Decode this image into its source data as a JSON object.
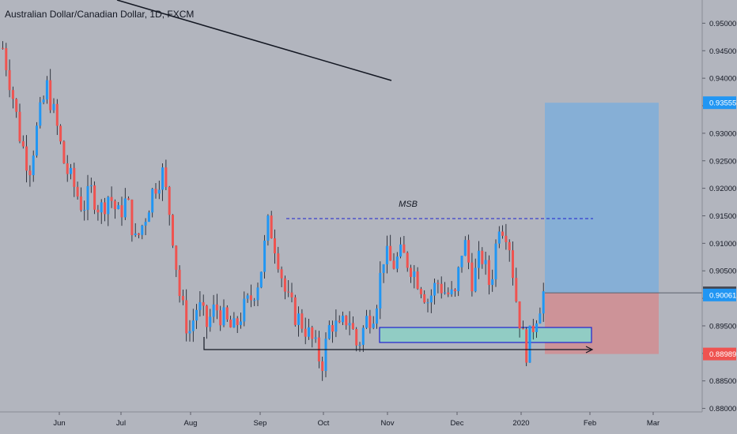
{
  "header": {
    "title": "Australian Dollar/Canadian Dollar, 1D, FXCM"
  },
  "chart_data": {
    "type": "candlestick",
    "symbol": "Australian Dollar/Canadian Dollar",
    "interval": "1D",
    "source": "FXCM",
    "ylim": [
      0.8775,
      0.9535
    ],
    "y_ticks": [
      "0.88000",
      "0.88500",
      "0.89000",
      "0.89500",
      "0.90000",
      "0.90500",
      "0.91000",
      "0.91500",
      "0.92000",
      "0.92500",
      "0.93000",
      "0.93500",
      "0.94000",
      "0.94500",
      "0.95000"
    ],
    "x_ticks": [
      "Jun",
      "Jul",
      "Aug",
      "Sep",
      "Oct",
      "Nov",
      "Dec",
      "2020",
      "Feb",
      "Mar"
    ],
    "price_badges": [
      {
        "label": "0.93555",
        "value": 0.93555,
        "color": "#2196f3"
      },
      {
        "label": "0.90100",
        "value": 0.901,
        "color": "#434651"
      },
      {
        "label": "0.90061",
        "value": 0.90061,
        "color": "#2196f3"
      },
      {
        "label": "0.88989",
        "value": 0.88989,
        "color": "#ef5350"
      }
    ],
    "annotations": {
      "msb_label": "MSB",
      "msb_level": 0.9145
    },
    "colors": {
      "up": "#2196f3",
      "down": "#ef5350",
      "background": "#b2b5be"
    },
    "ohlc_waypoints": [
      {
        "close": 0.9455
      },
      {
        "close": 0.938
      },
      {
        "close": 0.929
      },
      {
        "close": 0.9235
      },
      {
        "close": 0.932
      },
      {
        "close": 0.9385
      },
      {
        "close": 0.932
      },
      {
        "close": 0.924
      },
      {
        "close": 0.9205
      },
      {
        "close": 0.9165
      },
      {
        "close": 0.9195
      },
      {
        "close": 0.916
      },
      {
        "close": 0.919
      },
      {
        "close": 0.915
      },
      {
        "close": 0.918
      },
      {
        "close": 0.91
      },
      {
        "close": 0.9145
      },
      {
        "close": 0.92
      },
      {
        "close": 0.923
      },
      {
        "close": 0.914
      },
      {
        "close": 0.9
      },
      {
        "close": 0.8935
      },
      {
        "close": 0.899
      },
      {
        "close": 0.895
      },
      {
        "close": 0.8985
      },
      {
        "close": 0.896
      },
      {
        "close": 0.894
      },
      {
        "close": 0.8975
      },
      {
        "close": 0.9
      },
      {
        "close": 0.904
      },
      {
        "close": 0.914
      },
      {
        "close": 0.908
      },
      {
        "close": 0.9
      },
      {
        "close": 0.897
      },
      {
        "close": 0.895
      },
      {
        "close": 0.892
      },
      {
        "close": 0.888
      },
      {
        "close": 0.896
      },
      {
        "close": 0.894
      },
      {
        "close": 0.897
      },
      {
        "close": 0.891
      },
      {
        "close": 0.896
      },
      {
        "close": 0.898
      },
      {
        "close": 0.908
      },
      {
        "close": 0.906
      },
      {
        "close": 0.908
      },
      {
        "close": 0.906
      },
      {
        "close": 0.903
      },
      {
        "close": 0.8995
      },
      {
        "close": 0.903
      },
      {
        "close": 0.901
      },
      {
        "close": 0.9
      },
      {
        "close": 0.911
      },
      {
        "close": 0.903
      },
      {
        "close": 0.908
      },
      {
        "close": 0.902
      },
      {
        "close": 0.914
      },
      {
        "close": 0.912
      },
      {
        "close": 0.899
      },
      {
        "close": 0.89
      },
      {
        "close": 0.896
      },
      {
        "close": 0.901
      }
    ]
  }
}
